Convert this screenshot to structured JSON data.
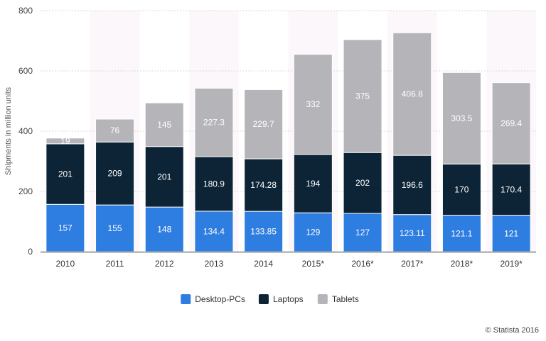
{
  "chart_data": {
    "type": "bar",
    "stacked": true,
    "title": "",
    "xlabel": "",
    "ylabel": "Shipments in million units",
    "ylim": [
      0,
      800
    ],
    "yticks": [
      0,
      200,
      400,
      600,
      800
    ],
    "categories": [
      "2010",
      "2011",
      "2012",
      "2013",
      "2014",
      "2015*",
      "2016*",
      "2017*",
      "2018*",
      "2019*"
    ],
    "series": [
      {
        "name": "Desktop-PCs",
        "color": "#2e7de0",
        "values": [
          157,
          155,
          148,
          134.4,
          133.85,
          129,
          127,
          123.11,
          121.1,
          121
        ],
        "labels": [
          "157",
          "155",
          "148",
          "134.4",
          "133.85",
          "129",
          "127",
          "123.11",
          "121.1",
          "121"
        ]
      },
      {
        "name": "Laptops",
        "color": "#0d2436",
        "values": [
          201,
          209,
          201,
          180.9,
          174.28,
          194,
          202,
          196.6,
          170,
          170.4
        ],
        "labels": [
          "201",
          "209",
          "201",
          "180.9",
          "174.28",
          "194",
          "202",
          "196.6",
          "170",
          "170.4"
        ]
      },
      {
        "name": "Tablets",
        "color": "#b5b4b9",
        "values": [
          19,
          76,
          145,
          227.3,
          229.7,
          332,
          375,
          406.8,
          303.5,
          269.4
        ],
        "labels": [
          "19",
          "76",
          "145",
          "227.3",
          "229.7",
          "332",
          "375",
          "406.8",
          "303.5",
          "269.4"
        ]
      }
    ],
    "legend_position": "bottom-center",
    "grid": true
  },
  "copyright": "© Statista 2016"
}
